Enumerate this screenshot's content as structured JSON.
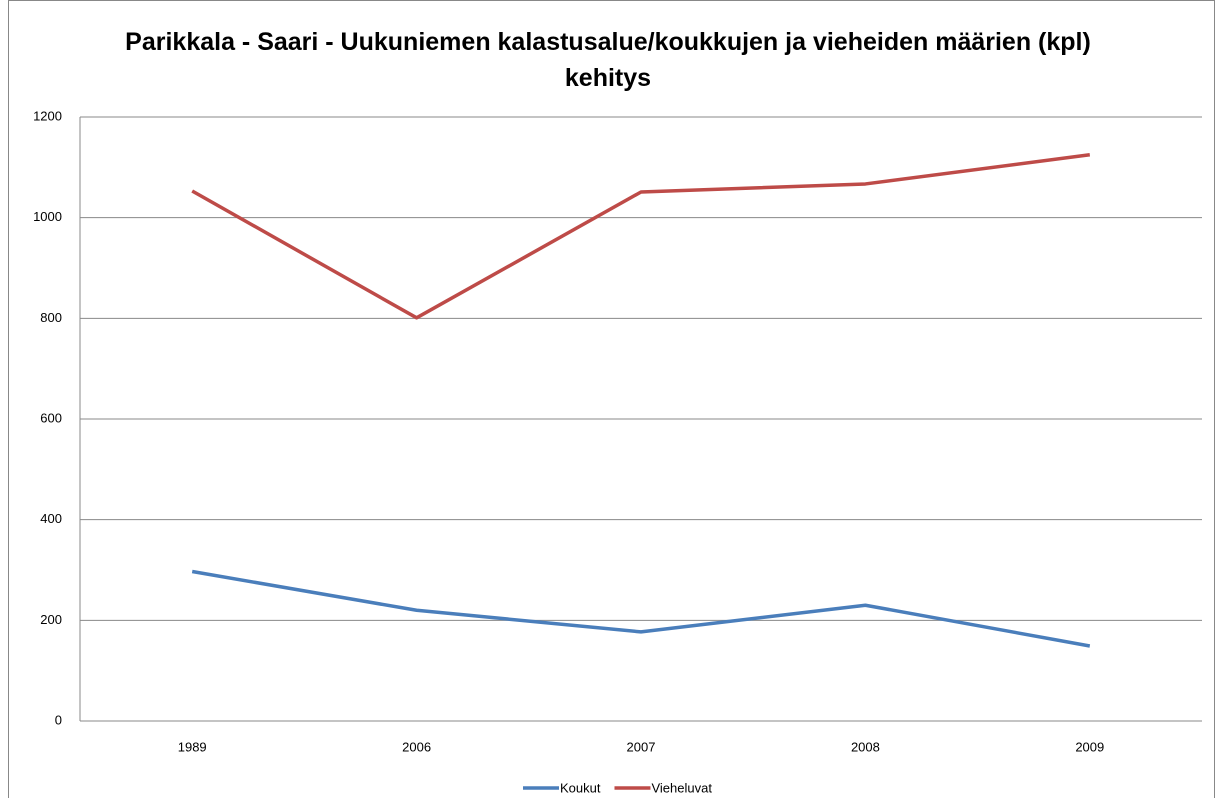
{
  "chart_data": {
    "type": "line",
    "title": "Parikkala - Saari - Uukuniemen kalastusalue/koukkujen ja vieheiden määrien (kpl) kehitys",
    "categories": [
      "1989",
      "2006",
      "2007",
      "2008",
      "2009"
    ],
    "series": [
      {
        "name": "Koukut",
        "color": "#4a7ebb",
        "values": [
          297,
          220,
          177,
          230,
          149
        ]
      },
      {
        "name": "Vieheluvat",
        "color": "#be4b48",
        "values": [
          1053,
          801,
          1051,
          1067,
          1125
        ]
      }
    ],
    "ylim": [
      0,
      1200
    ],
    "yticks": [
      0,
      200,
      400,
      600,
      800,
      1000,
      1200
    ],
    "grid": true,
    "legend": "bottom"
  }
}
